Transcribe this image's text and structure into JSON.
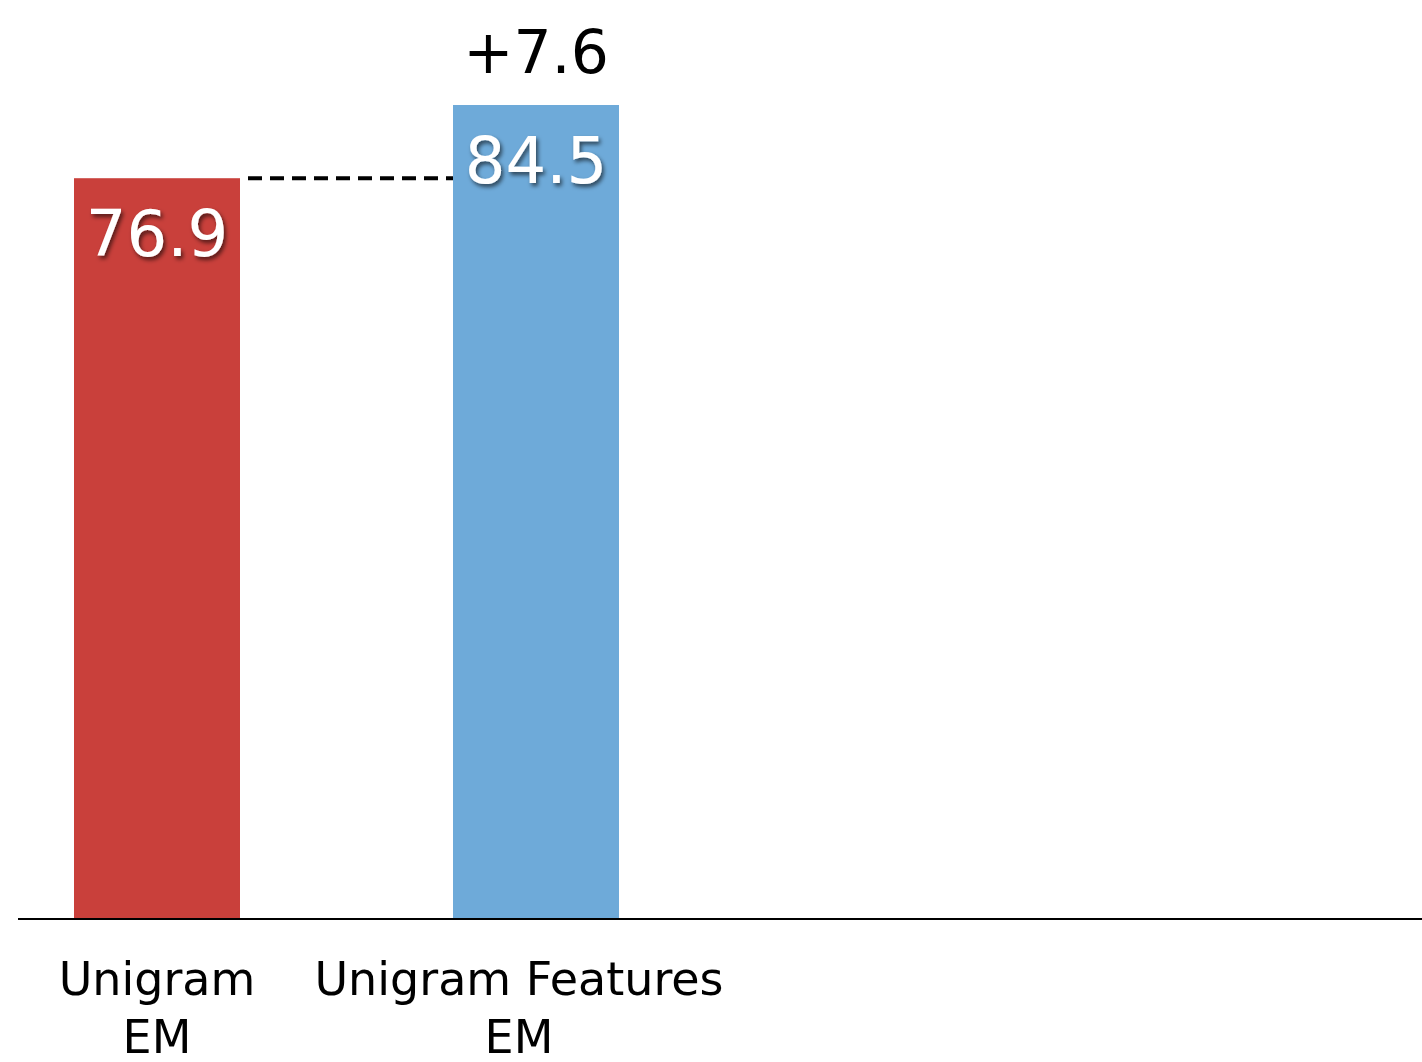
{
  "chart_data": {
    "type": "bar",
    "categories": [
      "Unigram EM",
      "Unigram Features EM"
    ],
    "values": [
      76.9,
      84.5
    ],
    "colors": [
      "#c9403b",
      "#6eaad9"
    ],
    "data_labels": true,
    "ref_lines": [
      {
        "axis": "y",
        "value": 76.9,
        "line_style": "dashed",
        "color": "#000000"
      }
    ],
    "annotations": [
      {
        "text": "+7.6",
        "x": "Unigram Features EM",
        "y": 84.5
      }
    ]
  }
}
